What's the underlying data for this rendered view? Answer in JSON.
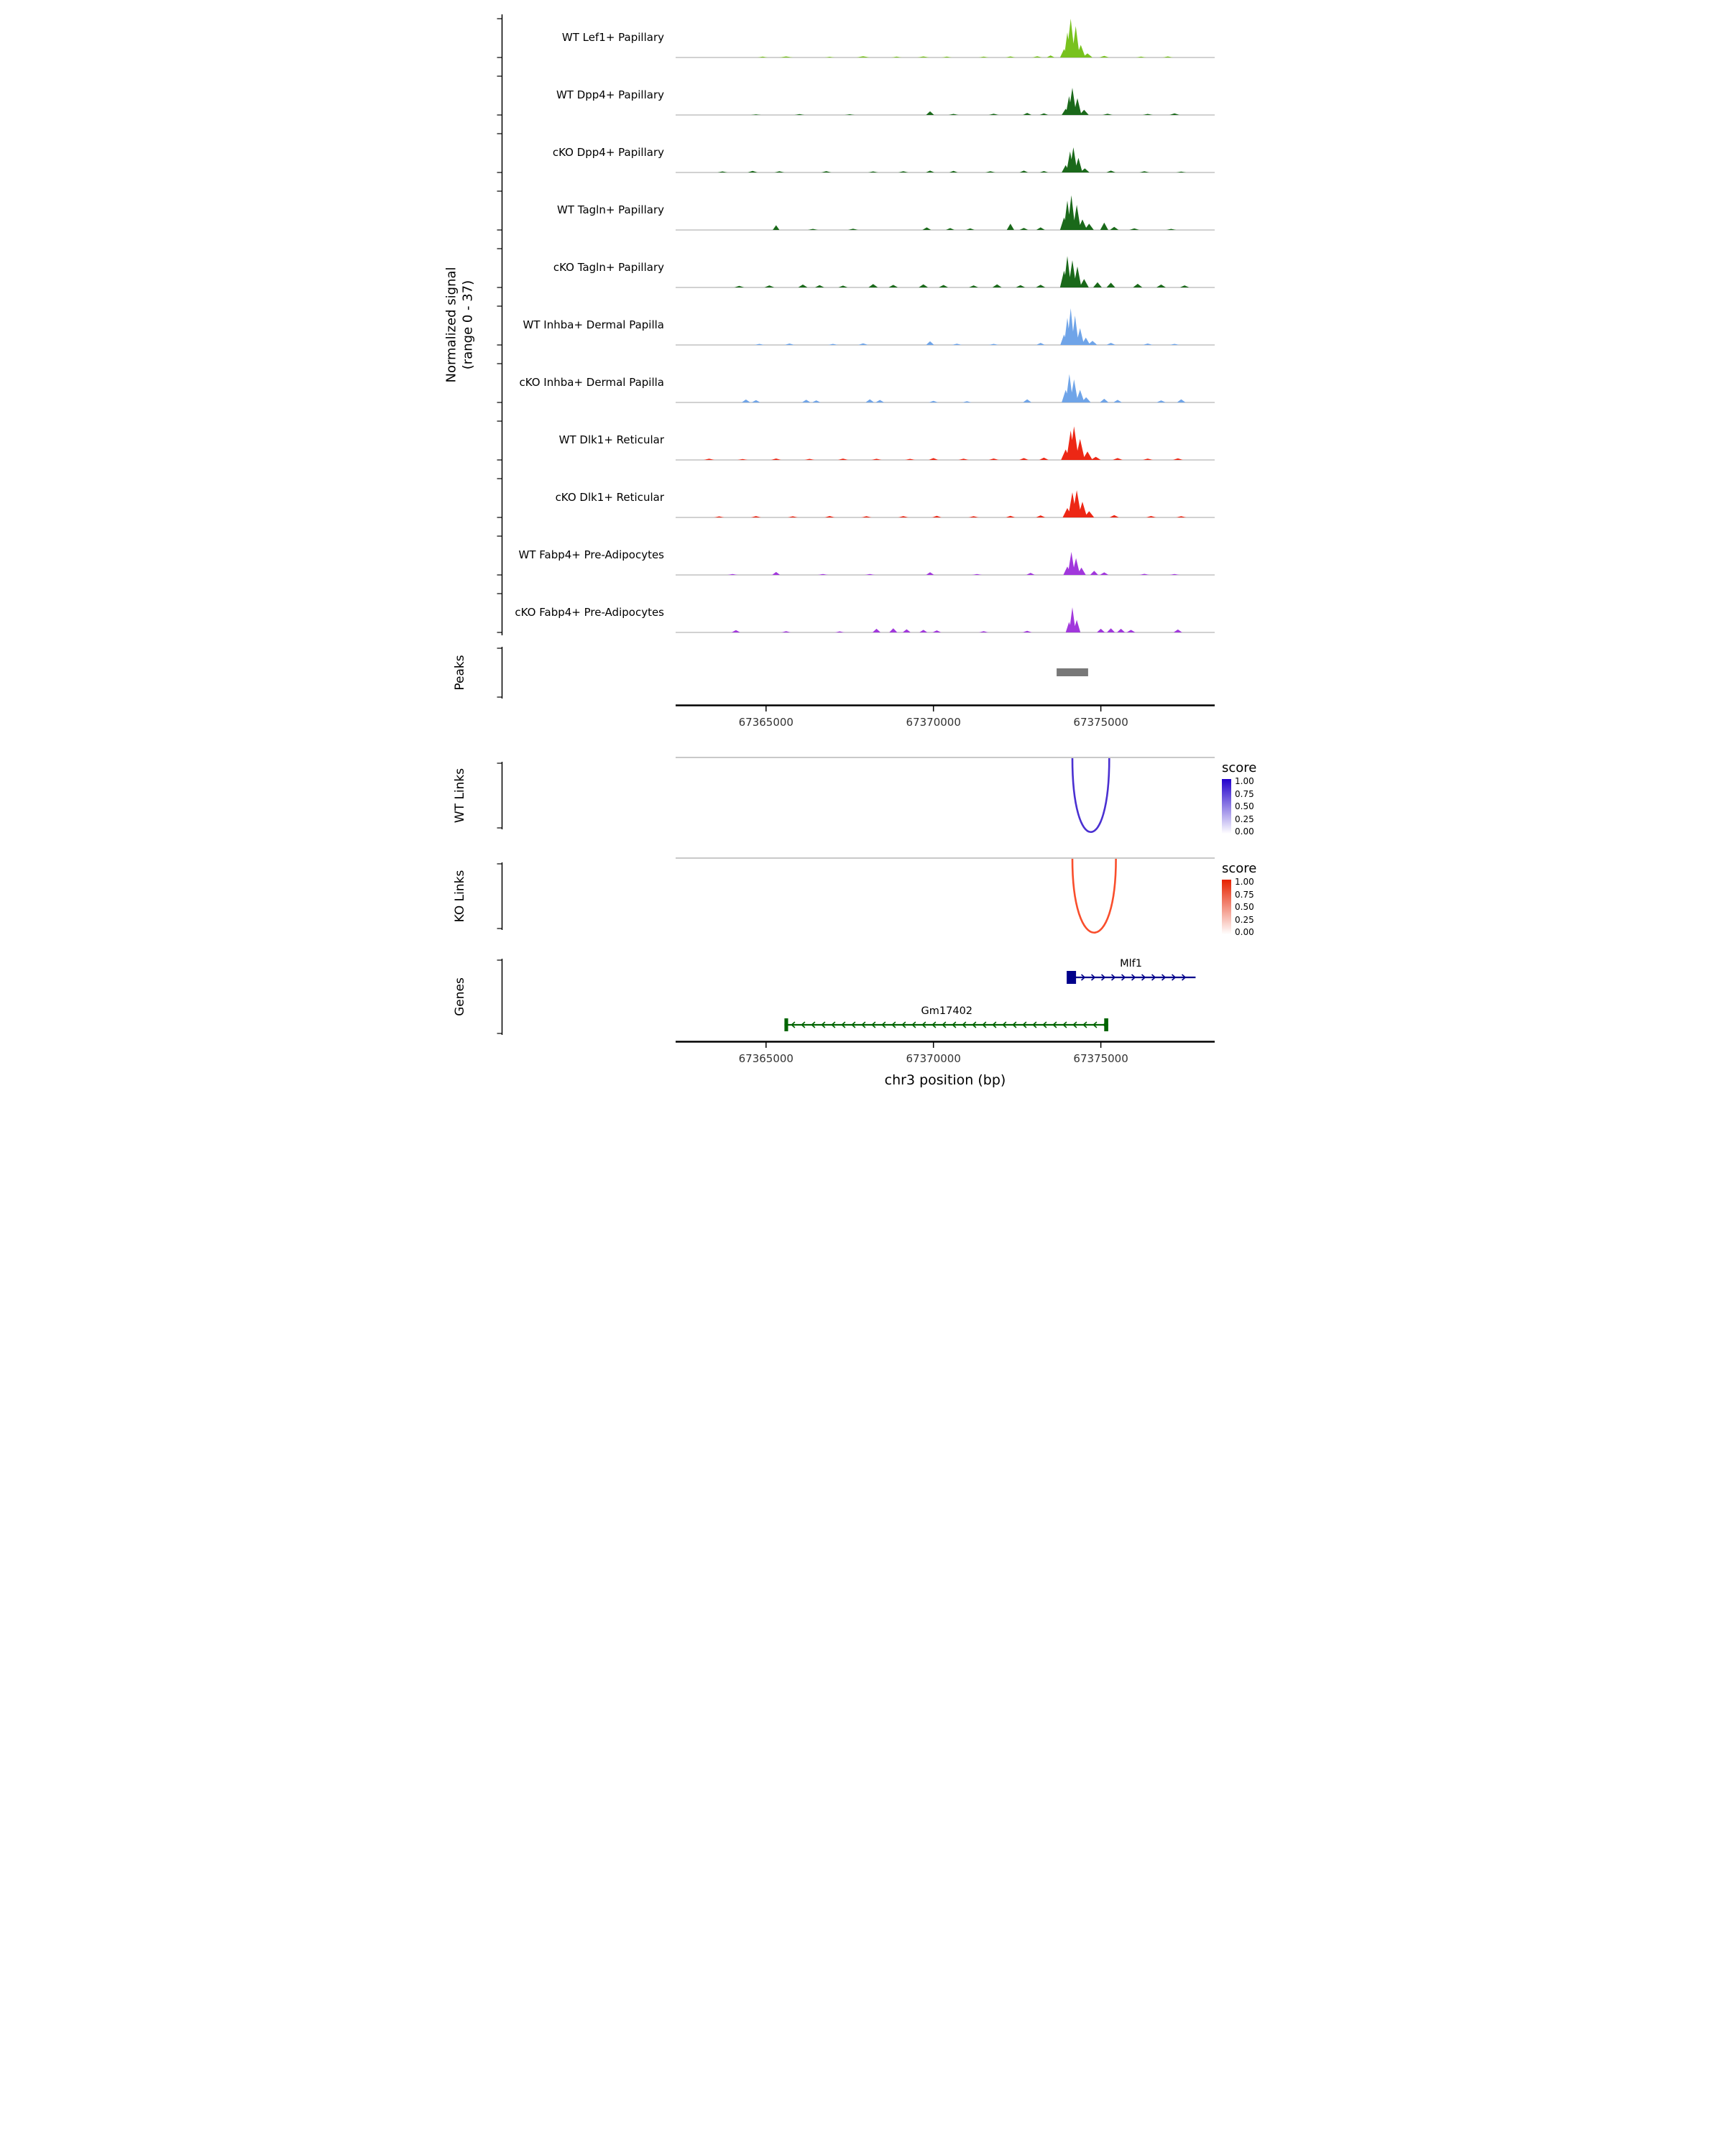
{
  "chart_data": {
    "type": "area",
    "x_range": [
      67362300,
      67378400
    ],
    "x_ticks": [
      67365000,
      67370000,
      67375000
    ],
    "x_tick_labels": [
      "67365000",
      "67370000",
      "67375000"
    ],
    "xlabel": "chr3 position (bp)",
    "y_axis_label_line1": "Normalized signal",
    "y_axis_label_line2": "(range 0 - 37)",
    "signal_range": [
      0,
      37
    ],
    "tracks": [
      {
        "label": "WT Lef1+ Papillary",
        "color": "#78C21E",
        "signal": [
          [
            67364900,
            0.8,
            150
          ],
          [
            67365600,
            1.0,
            200
          ],
          [
            67366900,
            0.7,
            150
          ],
          [
            67367900,
            1.2,
            200
          ],
          [
            67368900,
            0.8,
            150
          ],
          [
            67369700,
            1.0,
            180
          ],
          [
            67370400,
            0.9,
            150
          ],
          [
            67371500,
            0.8,
            150
          ],
          [
            67372300,
            1.0,
            150
          ],
          [
            67373100,
            1.2,
            150
          ],
          [
            67373500,
            2,
            120
          ],
          [
            67373900,
            8,
            120
          ],
          [
            67374000,
            24,
            100
          ],
          [
            67374100,
            37,
            130
          ],
          [
            67374250,
            30,
            120
          ],
          [
            67374400,
            12,
            140
          ],
          [
            67374600,
            4,
            150
          ],
          [
            67375100,
            1.5,
            150
          ],
          [
            67376200,
            0.8,
            150
          ],
          [
            67377000,
            1.0,
            150
          ]
        ]
      },
      {
        "label": "WT Dpp4+ Papillary",
        "color": "#1A691A",
        "signal": [
          [
            67364700,
            0.6,
            150
          ],
          [
            67366000,
            0.8,
            150
          ],
          [
            67367500,
            0.7,
            150
          ],
          [
            67369900,
            3.5,
            120
          ],
          [
            67370600,
            1.0,
            150
          ],
          [
            67371800,
            1.2,
            150
          ],
          [
            67372800,
            2.0,
            130
          ],
          [
            67373300,
            1.5,
            130
          ],
          [
            67373950,
            6,
            120
          ],
          [
            67374050,
            18,
            100
          ],
          [
            67374150,
            26,
            120
          ],
          [
            67374300,
            16,
            120
          ],
          [
            67374500,
            5,
            140
          ],
          [
            67375200,
            1.2,
            150
          ],
          [
            67376400,
            1.0,
            150
          ],
          [
            67377200,
            1.5,
            150
          ]
        ]
      },
      {
        "label": "cKO Dpp4+ Papillary",
        "color": "#1A691A",
        "signal": [
          [
            67363700,
            1.0,
            150
          ],
          [
            67364600,
            1.5,
            150
          ],
          [
            67365400,
            1.2,
            150
          ],
          [
            67366800,
            1.3,
            150
          ],
          [
            67368200,
            1.0,
            150
          ],
          [
            67369100,
            1.2,
            150
          ],
          [
            67369900,
            1.8,
            130
          ],
          [
            67370600,
            1.5,
            130
          ],
          [
            67371700,
            1.2,
            150
          ],
          [
            67372700,
            1.8,
            130
          ],
          [
            67373300,
            1.4,
            130
          ],
          [
            67373950,
            7,
            120
          ],
          [
            67374080,
            20,
            110
          ],
          [
            67374180,
            24,
            120
          ],
          [
            67374330,
            14,
            120
          ],
          [
            67374520,
            4,
            140
          ],
          [
            67375300,
            1.8,
            140
          ],
          [
            67376300,
            1.2,
            150
          ],
          [
            67377400,
            0.8,
            150
          ]
        ]
      },
      {
        "label": "WT Tagln+ Papillary",
        "color": "#1A691A",
        "signal": [
          [
            67365300,
            4.5,
            100
          ],
          [
            67366400,
            1.0,
            150
          ],
          [
            67367600,
            1.2,
            150
          ],
          [
            67369800,
            2.5,
            130
          ],
          [
            67370500,
            1.8,
            130
          ],
          [
            67371100,
            1.5,
            130
          ],
          [
            67372300,
            6,
            110
          ],
          [
            67372700,
            2,
            130
          ],
          [
            67373200,
            2.5,
            130
          ],
          [
            67373900,
            12,
            120
          ],
          [
            67374000,
            28,
            110
          ],
          [
            67374120,
            33,
            120
          ],
          [
            67374280,
            24,
            120
          ],
          [
            67374450,
            10,
            140
          ],
          [
            67374650,
            6,
            140
          ],
          [
            67375100,
            7,
            120
          ],
          [
            67375400,
            3,
            130
          ],
          [
            67376000,
            1.5,
            150
          ],
          [
            67377100,
            1.0,
            150
          ]
        ]
      },
      {
        "label": "cKO Tagln+ Papillary",
        "color": "#1A691A",
        "signal": [
          [
            67364200,
            1.5,
            150
          ],
          [
            67365100,
            2,
            150
          ],
          [
            67366100,
            2.8,
            140
          ],
          [
            67366600,
            2.2,
            140
          ],
          [
            67367300,
            1.8,
            140
          ],
          [
            67368200,
            3.2,
            140
          ],
          [
            67368800,
            2.5,
            140
          ],
          [
            67369700,
            3.0,
            140
          ],
          [
            67370300,
            2.4,
            140
          ],
          [
            67371200,
            2.0,
            140
          ],
          [
            67371900,
            3.0,
            140
          ],
          [
            67372600,
            2.2,
            140
          ],
          [
            67373200,
            2.6,
            140
          ],
          [
            67373900,
            16,
            120
          ],
          [
            67374000,
            30,
            110
          ],
          [
            67374150,
            26,
            120
          ],
          [
            67374300,
            20,
            120
          ],
          [
            67374500,
            8,
            140
          ],
          [
            67374900,
            5,
            130
          ],
          [
            67375300,
            4.5,
            130
          ],
          [
            67376100,
            3.5,
            140
          ],
          [
            67376800,
            2.8,
            140
          ],
          [
            67377500,
            2.0,
            140
          ]
        ]
      },
      {
        "label": "WT Inhba+ Dermal Papilla",
        "color": "#6FA4E8",
        "signal": [
          [
            67364800,
            1.0,
            150
          ],
          [
            67365700,
            1.4,
            150
          ],
          [
            67367000,
            1.0,
            150
          ],
          [
            67367900,
            1.6,
            150
          ],
          [
            67369900,
            3.5,
            120
          ],
          [
            67370700,
            1.2,
            150
          ],
          [
            67371800,
            1.0,
            150
          ],
          [
            67373200,
            2.0,
            130
          ],
          [
            67373900,
            10,
            110
          ],
          [
            67374000,
            26,
            100
          ],
          [
            67374100,
            35,
            110
          ],
          [
            67374230,
            28,
            110
          ],
          [
            67374380,
            16,
            120
          ],
          [
            67374550,
            7,
            130
          ],
          [
            67374750,
            4,
            140
          ],
          [
            67375300,
            2,
            140
          ],
          [
            67376400,
            1.4,
            150
          ],
          [
            67377200,
            1.0,
            150
          ]
        ]
      },
      {
        "label": "cKO Inhba+ Dermal Papilla",
        "color": "#6FA4E8",
        "signal": [
          [
            67364400,
            2.8,
            130
          ],
          [
            67364700,
            2.2,
            130
          ],
          [
            67366200,
            2.6,
            130
          ],
          [
            67366500,
            2.0,
            130
          ],
          [
            67368100,
            3.0,
            130
          ],
          [
            67368400,
            2.4,
            130
          ],
          [
            67370000,
            1.5,
            140
          ],
          [
            67371000,
            1.2,
            140
          ],
          [
            67372800,
            3.0,
            130
          ],
          [
            67373950,
            12,
            120
          ],
          [
            67374060,
            27,
            110
          ],
          [
            67374200,
            22,
            120
          ],
          [
            67374380,
            12,
            130
          ],
          [
            67374560,
            5,
            140
          ],
          [
            67375100,
            3.5,
            130
          ],
          [
            67375500,
            2.5,
            130
          ],
          [
            67376800,
            2.0,
            140
          ],
          [
            67377400,
            3.0,
            130
          ]
        ]
      },
      {
        "label": "WT Dlk1+ Reticular",
        "color": "#ED2715",
        "signal": [
          [
            67363300,
            1.2,
            160
          ],
          [
            67364300,
            0.9,
            150
          ],
          [
            67365300,
            1.4,
            150
          ],
          [
            67366300,
            1.0,
            150
          ],
          [
            67367300,
            1.3,
            150
          ],
          [
            67368300,
            1.1,
            150
          ],
          [
            67369300,
            1.0,
            150
          ],
          [
            67370000,
            1.8,
            140
          ],
          [
            67370900,
            1.2,
            150
          ],
          [
            67371800,
            1.4,
            150
          ],
          [
            67372700,
            1.8,
            140
          ],
          [
            67373300,
            2.2,
            140
          ],
          [
            67373950,
            10,
            140
          ],
          [
            67374100,
            28,
            130
          ],
          [
            67374200,
            32,
            140
          ],
          [
            67374380,
            20,
            140
          ],
          [
            67374600,
            8,
            150
          ],
          [
            67374850,
            3,
            150
          ],
          [
            67375500,
            1.8,
            150
          ],
          [
            67376400,
            1.3,
            150
          ],
          [
            67377300,
            1.6,
            150
          ]
        ]
      },
      {
        "label": "cKO Dlk1+ Reticular",
        "color": "#ED2715",
        "signal": [
          [
            67363600,
            1.0,
            150
          ],
          [
            67364700,
            1.3,
            150
          ],
          [
            67365800,
            1.1,
            150
          ],
          [
            67366900,
            1.4,
            150
          ],
          [
            67368000,
            1.2,
            150
          ],
          [
            67369100,
            1.3,
            150
          ],
          [
            67370100,
            1.5,
            140
          ],
          [
            67371200,
            1.2,
            150
          ],
          [
            67372300,
            1.6,
            140
          ],
          [
            67373200,
            2.0,
            140
          ],
          [
            67374000,
            9,
            140
          ],
          [
            67374150,
            24,
            130
          ],
          [
            67374280,
            26,
            140
          ],
          [
            67374450,
            15,
            140
          ],
          [
            67374650,
            6,
            150
          ],
          [
            67375400,
            2.2,
            140
          ],
          [
            67376500,
            1.4,
            150
          ],
          [
            67377400,
            1.2,
            150
          ]
        ]
      },
      {
        "label": "WT Fabp4+ Pre-Adipocytes",
        "color": "#A137DC",
        "signal": [
          [
            67364000,
            0.8,
            150
          ],
          [
            67365300,
            2.8,
            120
          ],
          [
            67366700,
            0.9,
            150
          ],
          [
            67368100,
            0.8,
            150
          ],
          [
            67369900,
            2.6,
            120
          ],
          [
            67371300,
            0.9,
            150
          ],
          [
            67372900,
            2.0,
            130
          ],
          [
            67374000,
            8,
            120
          ],
          [
            67374120,
            22,
            110
          ],
          [
            67374260,
            16,
            120
          ],
          [
            67374420,
            7,
            130
          ],
          [
            67374800,
            4,
            120
          ],
          [
            67375100,
            2.5,
            130
          ],
          [
            67376300,
            1.0,
            150
          ],
          [
            67377200,
            0.8,
            150
          ]
        ]
      },
      {
        "label": "cKO Fabp4+ Pre-Adipocytes",
        "color": "#A137DC",
        "signal": [
          [
            67364100,
            2.2,
            130
          ],
          [
            67365600,
            1.2,
            140
          ],
          [
            67367200,
            1.0,
            140
          ],
          [
            67368300,
            3.5,
            120
          ],
          [
            67368800,
            4.0,
            120
          ],
          [
            67369200,
            3.0,
            120
          ],
          [
            67369700,
            2.5,
            120
          ],
          [
            67370100,
            2.0,
            130
          ],
          [
            67371500,
            1.2,
            140
          ],
          [
            67372800,
            1.5,
            140
          ],
          [
            67374050,
            10,
            100
          ],
          [
            67374150,
            24,
            100
          ],
          [
            67374280,
            12,
            110
          ],
          [
            67375000,
            3.5,
            120
          ],
          [
            67375300,
            4.0,
            120
          ],
          [
            67375600,
            3.5,
            120
          ],
          [
            67375900,
            2.5,
            130
          ],
          [
            67377300,
            2.8,
            130
          ]
        ]
      }
    ],
    "peaks": {
      "section_label": "Peaks",
      "color": "#787878",
      "regions": [
        [
          67373680,
          67374620
        ]
      ]
    },
    "links_wt": {
      "section_label": "WT Links",
      "color": "#4A30D1",
      "links": [
        {
          "start": 67374150,
          "end": 67375250,
          "score": 1.0
        }
      ],
      "legend": {
        "title": "score",
        "ticks": [
          "1.00",
          "0.75",
          "0.50",
          "0.25",
          "0.00"
        ],
        "high": "#2200CC",
        "low": "#FFFFFF"
      }
    },
    "links_ko": {
      "section_label": "KO Links",
      "color": "#F94E2C",
      "links": [
        {
          "start": 67374150,
          "end": 67375450,
          "score": 1.0
        }
      ],
      "legend": {
        "title": "score",
        "ticks": [
          "1.00",
          "0.75",
          "0.50",
          "0.25",
          "0.00"
        ],
        "high": "#E62200",
        "low": "#FFFFFF"
      }
    },
    "genes_section_label": "Genes",
    "genes": [
      {
        "name": "Mlf1",
        "strand": "+",
        "start": 67374000,
        "end": 67377830,
        "color": "#00008B",
        "exon_boxes": [
          [
            67373980,
            67374260
          ]
        ],
        "label_pos": 67375900
      },
      {
        "name": "Gm17402",
        "strand": "-",
        "start": 67365550,
        "end": 67375220,
        "color": "#006400",
        "exon_boxes": [
          [
            67365550,
            67365660
          ],
          [
            67375100,
            67375220
          ]
        ],
        "label_pos": 67370400
      }
    ]
  }
}
